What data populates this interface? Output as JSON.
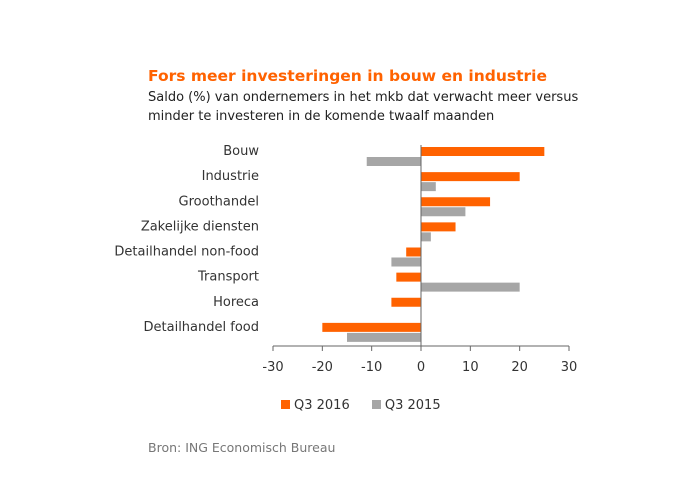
{
  "chart_data": {
    "type": "bar",
    "orientation": "horizontal",
    "title": "Fors meer investeringen in bouw en industrie",
    "subtitle": "Saldo (%) van ondernemers in het mkb dat verwacht meer versus minder te investeren in de komende twaalf maanden",
    "categories": [
      "Bouw",
      "Industrie",
      "Groothandel",
      "Zakelijke diensten",
      "Detailhandel non-food",
      "Transport",
      "Horeca",
      "Detailhandel food"
    ],
    "series": [
      {
        "name": "Q3 2016",
        "color": "#ff6200",
        "values": [
          25,
          20,
          14,
          7,
          -3,
          -5,
          -6,
          -20
        ]
      },
      {
        "name": "Q3 2015",
        "color": "#a6a6a6",
        "values": [
          -11,
          3,
          9,
          2,
          -6,
          20,
          null,
          -15
        ]
      }
    ],
    "xlim": [
      -30,
      30
    ],
    "xticks": [
      -30,
      -20,
      -10,
      0,
      10,
      20,
      30
    ],
    "legend_position": "bottom",
    "grid": false,
    "source": "Bron: ING Economisch Bureau"
  }
}
